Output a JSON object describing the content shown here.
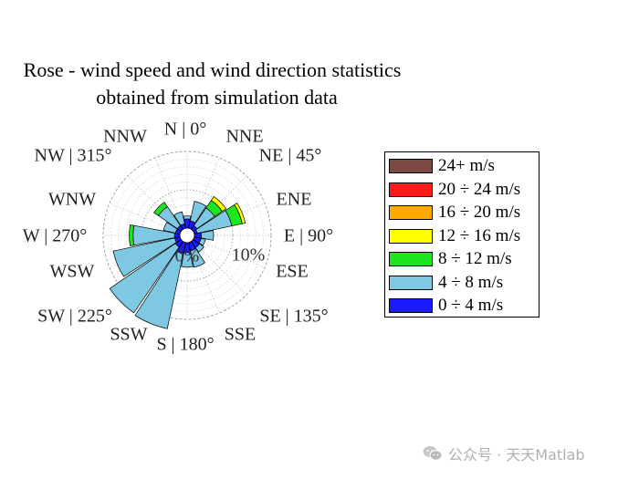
{
  "chart_data": {
    "type": "wind-rose",
    "title": [
      "Rose - wind speed and wind direction statistics",
      "obtained from simulation data"
    ],
    "direction_labels": [
      "N | 0°",
      "NNE",
      "NE | 45°",
      "ENE",
      "E | 90°",
      "ESE",
      "SE | 135°",
      "SSE",
      "S | 180°",
      "SSW",
      "SW | 225°",
      "WSW",
      "W | 270°",
      "WNW",
      "NW | 315°",
      "NNW"
    ],
    "radial_ticks": [
      {
        "label": "0%",
        "value": 0
      },
      {
        "label": "10%",
        "value": 10
      }
    ],
    "rmax": 10,
    "grid": true,
    "legend_position": "right",
    "speed_bins": [
      {
        "label": "0 ÷ 4 m/s",
        "color": "#1a1aff"
      },
      {
        "label": "4 ÷ 8 m/s",
        "color": "#7ec8e3"
      },
      {
        "label": "8 ÷ 12 m/s",
        "color": "#1ee61e"
      },
      {
        "label": "12 ÷ 16 m/s",
        "color": "#ffff00"
      },
      {
        "label": "16 ÷ 20 m/s",
        "color": "#ffaa00"
      },
      {
        "label": "20 ÷ 24 m/s",
        "color": "#ff1a1a"
      },
      {
        "label": "24+ m/s",
        "color": "#7b4a42"
      }
    ],
    "series": [
      {
        "direction": "N",
        "values": [
          1.2,
          0.4,
          0.0,
          0.0,
          0.0,
          0.0,
          0.0
        ]
      },
      {
        "direction": "NNE",
        "values": [
          1.0,
          2.6,
          0.0,
          0.0,
          0.0,
          0.0,
          0.0
        ]
      },
      {
        "direction": "NE",
        "values": [
          0.6,
          2.8,
          1.2,
          0.6,
          0.0,
          0.0,
          0.0
        ]
      },
      {
        "direction": "ENE",
        "values": [
          0.4,
          4.6,
          1.4,
          0.4,
          0.0,
          0.0,
          0.0
        ]
      },
      {
        "direction": "E",
        "values": [
          0.9,
          1.6,
          0.0,
          0.0,
          0.0,
          0.0,
          0.0
        ]
      },
      {
        "direction": "ESE",
        "values": [
          0.9,
          0.6,
          0.0,
          0.0,
          0.0,
          0.0,
          0.0
        ]
      },
      {
        "direction": "SE",
        "values": [
          1.0,
          0.7,
          0.0,
          0.0,
          0.0,
          0.0,
          0.0
        ]
      },
      {
        "direction": "SSE",
        "values": [
          1.1,
          2.2,
          0.0,
          0.0,
          0.0,
          0.0,
          0.0
        ]
      },
      {
        "direction": "S",
        "values": [
          1.3,
          1.9,
          0.0,
          0.0,
          0.0,
          0.0,
          0.0
        ]
      },
      {
        "direction": "SSW",
        "values": [
          1.5,
          10.0,
          0.0,
          0.0,
          0.0,
          0.0,
          0.0
        ]
      },
      {
        "direction": "SW",
        "values": [
          0.9,
          10.4,
          0.0,
          0.0,
          0.0,
          0.0,
          0.0
        ]
      },
      {
        "direction": "WSW",
        "values": [
          0.7,
          8.2,
          0.0,
          0.0,
          0.0,
          0.0,
          0.0
        ]
      },
      {
        "direction": "W",
        "values": [
          0.7,
          5.4,
          0.5,
          0.0,
          0.0,
          0.0,
          0.0
        ]
      },
      {
        "direction": "WNW",
        "values": [
          0.6,
          1.6,
          0.0,
          0.0,
          0.0,
          0.0,
          0.0
        ]
      },
      {
        "direction": "NW",
        "values": [
          0.6,
          3.0,
          0.7,
          0.0,
          0.0,
          0.0,
          0.0
        ]
      },
      {
        "direction": "NNW",
        "values": [
          0.6,
          1.6,
          0.0,
          0.0,
          0.0,
          0.0,
          0.0
        ]
      }
    ]
  },
  "watermark": {
    "text": "公众号 · 天天Matlab",
    "icon": "wechat-icon"
  }
}
